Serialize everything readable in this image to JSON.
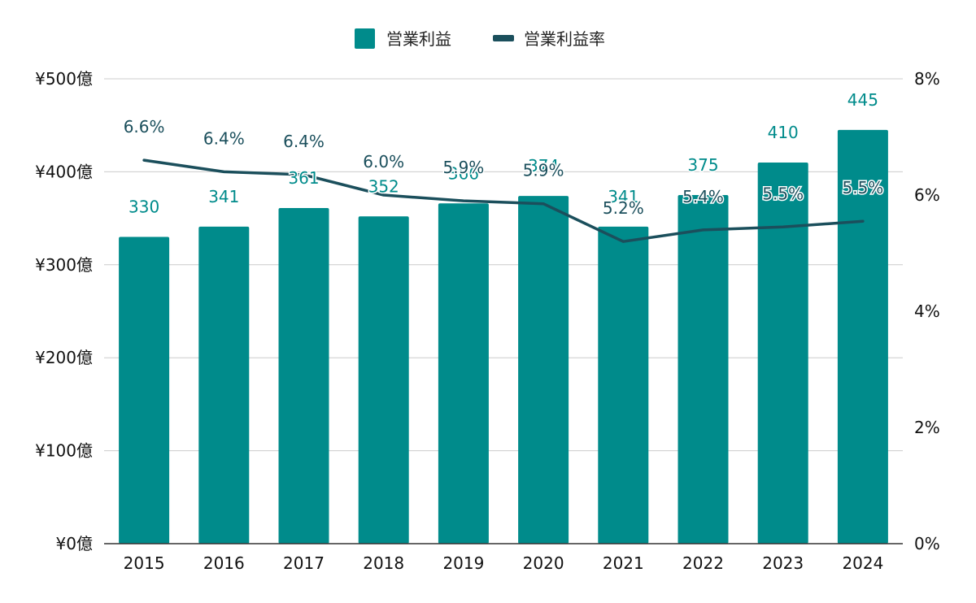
{
  "chart_data": {
    "type": "bar",
    "legend_position": "top",
    "grid": true,
    "categories": [
      "2015",
      "2016",
      "2017",
      "2018",
      "2019",
      "2020",
      "2021",
      "2022",
      "2023",
      "2024"
    ],
    "series": [
      {
        "name": "営業利益",
        "type": "bar",
        "axis": "left",
        "color": "#008b8b",
        "label_color": "#008b8b",
        "values": [
          330,
          341,
          361,
          352,
          366,
          374,
          341,
          375,
          410,
          445
        ],
        "labels": [
          "330",
          "341",
          "361",
          "352",
          "366",
          "374",
          "341",
          "375",
          "410",
          "445"
        ]
      },
      {
        "name": "営業利益率",
        "type": "line",
        "axis": "right",
        "color": "#1b4f5c",
        "label_color": "#1b4f5c",
        "values": [
          6.6,
          6.4,
          6.35,
          6.0,
          5.9,
          5.85,
          5.2,
          5.4,
          5.45,
          5.55
        ],
        "labels": [
          "6.6%",
          "6.4%",
          "6.4%",
          "6.0%",
          "5.9%",
          "5.9%",
          "5.2%",
          "5.4%",
          "5.5%",
          "5.5%"
        ]
      }
    ],
    "y_left": {
      "ylim": [
        0,
        500
      ],
      "ticks": [
        0,
        100,
        200,
        300,
        400,
        500
      ],
      "tick_labels": [
        "¥0億",
        "¥100億",
        "¥200億",
        "¥300億",
        "¥400億",
        "¥500億"
      ]
    },
    "y_right": {
      "ylim": [
        0,
        8
      ],
      "ticks": [
        0,
        2,
        4,
        6,
        8
      ],
      "tick_labels": [
        "0%",
        "2%",
        "4%",
        "6%",
        "8%"
      ]
    }
  }
}
